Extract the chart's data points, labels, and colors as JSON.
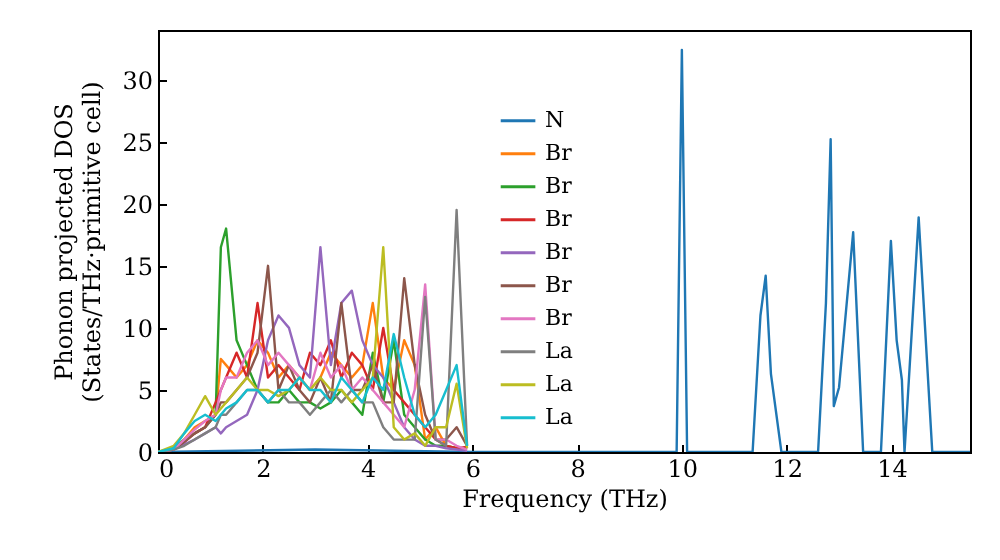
{
  "chart_data": {
    "type": "line",
    "xlabel": "Frequency (THz)",
    "ylabel": "Phonon projected DOS\n(States/THz·primitive cell)",
    "x": [
      0,
      0.3,
      0.5,
      0.7,
      0.9,
      1.1,
      1.2,
      1.3,
      1.5,
      1.7,
      1.9,
      2.1,
      2.3,
      2.5,
      2.7,
      2.9,
      3.1,
      3.3,
      3.5,
      3.7,
      3.9,
      4.1,
      4.3,
      4.5,
      4.7,
      4.9,
      5.1,
      5.3,
      5.5,
      5.7,
      5.9
    ],
    "series": [
      {
        "name": "N",
        "color": "#1f77b4",
        "x": [
          0,
          3,
          6,
          9.9,
          10.0,
          10.1,
          11.35,
          11.5,
          11.6,
          11.7,
          11.9,
          12.6,
          12.75,
          12.84,
          12.9,
          13.0,
          13.27,
          13.46,
          13.8,
          13.99,
          14.1,
          14.2,
          14.25,
          14.52,
          14.78,
          15.5
        ],
        "values": [
          0,
          0.2,
          0,
          0,
          32.4,
          0,
          0,
          11,
          14.2,
          6.3,
          0,
          0,
          12,
          25.2,
          3.7,
          5.2,
          17.7,
          0,
          0,
          17,
          9,
          5.8,
          0,
          18.9,
          0,
          0
        ]
      },
      {
        "name": "Br",
        "color": "#ff7f0e",
        "values": [
          0,
          0.3,
          1,
          2,
          2.5,
          3,
          7.5,
          7,
          6,
          7,
          9,
          8,
          6,
          7,
          6,
          5,
          6,
          8,
          7,
          6,
          7,
          12,
          6,
          5,
          9,
          7,
          1,
          2,
          0.5,
          0.3,
          0.3
        ]
      },
      {
        "name": "Br",
        "color": "#2ca02c",
        "values": [
          0,
          0.3,
          1,
          1.5,
          2,
          3,
          16.5,
          18,
          9,
          7,
          5,
          4,
          4,
          5,
          4,
          4,
          3.5,
          4,
          5,
          4,
          3,
          8,
          4,
          9,
          3,
          2,
          1,
          0.5,
          0.5,
          0.3,
          0.2
        ]
      },
      {
        "name": "Br",
        "color": "#d62728",
        "values": [
          0,
          0.2,
          0.8,
          1.5,
          2,
          4,
          5,
          6,
          8,
          6,
          12,
          6,
          7,
          6,
          5,
          8,
          7,
          9,
          6,
          8,
          7,
          5,
          10,
          5,
          4,
          3,
          2,
          1,
          0.5,
          0.3,
          0.4
        ]
      },
      {
        "name": "Br",
        "color": "#9467bd",
        "values": [
          0,
          0.2,
          0.6,
          1,
          1.5,
          2,
          1.5,
          2,
          2.5,
          3,
          5,
          9,
          11,
          10,
          7,
          6,
          16.5,
          7,
          12,
          13,
          9,
          7,
          6,
          4,
          2,
          1,
          0.5,
          0.5,
          0.3,
          0.2,
          0.1
        ]
      },
      {
        "name": "Br",
        "color": "#8c564b",
        "values": [
          0,
          0.2,
          0.8,
          1.5,
          2,
          3,
          4,
          4,
          5,
          6,
          8,
          15,
          5,
          7,
          5,
          4,
          6,
          4,
          12,
          5,
          5,
          7,
          4,
          4,
          14,
          7,
          3,
          1,
          1,
          2,
          0.5
        ]
      },
      {
        "name": "Br",
        "color": "#e377c2",
        "values": [
          0,
          0.2,
          1,
          1.8,
          2.5,
          3,
          5,
          6,
          6,
          8,
          9,
          7,
          8,
          7,
          6,
          5,
          8,
          6,
          7,
          5,
          6,
          5,
          4,
          3,
          2,
          5,
          13.5,
          1,
          1,
          0.5,
          0.2
        ]
      },
      {
        "name": "La",
        "color": "#7f7f7f",
        "values": [
          0,
          0.2,
          0.5,
          1,
          1.5,
          2,
          3,
          3,
          4,
          5,
          5,
          4,
          5,
          4,
          4,
          3,
          4,
          5,
          4,
          5,
          4,
          4,
          2,
          1,
          1,
          1,
          12.5,
          1,
          0.5,
          19.5,
          0.5
        ]
      },
      {
        "name": "La",
        "color": "#bcbd22",
        "values": [
          0,
          0.5,
          1.5,
          3,
          4.5,
          3,
          3.5,
          4,
          5,
          6,
          5,
          5,
          4.5,
          5,
          6,
          5,
          6,
          5,
          5,
          4,
          5,
          6,
          16.5,
          2,
          1,
          1.5,
          0.5,
          2,
          2,
          5.5,
          0.3
        ]
      },
      {
        "name": "La",
        "color": "#17becf",
        "values": [
          0,
          0.3,
          1.5,
          2.5,
          3,
          2.5,
          3,
          3.5,
          4,
          5,
          5,
          4,
          5,
          5,
          6,
          5,
          5,
          4,
          6,
          5,
          4,
          6,
          5,
          9.5,
          6,
          3,
          2,
          3,
          5,
          7,
          0.5
        ]
      }
    ],
    "xlim": [
      0,
      15.5
    ],
    "ylim": [
      0,
      34
    ],
    "xticks": [
      0,
      2,
      4,
      6,
      8,
      10,
      12,
      14
    ],
    "yticks": [
      0,
      5,
      10,
      15,
      20,
      25,
      30
    ],
    "legend": "center",
    "grid": false
  }
}
